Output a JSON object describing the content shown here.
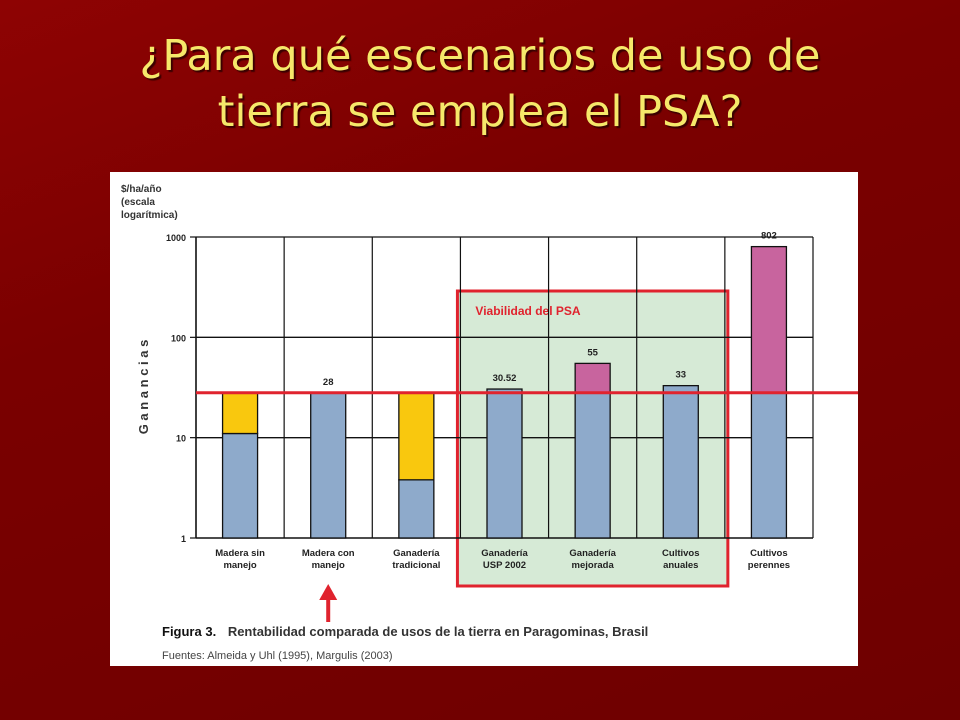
{
  "slide": {
    "title_line1": "¿Para qué escenarios de uso de",
    "title_line2": "tierra se emplea el PSA?"
  },
  "figure": {
    "number": "Figura 3.",
    "caption": "Rentabilidad comparada de usos de la tierra en Paragominas, Brasil",
    "sources": "Fuentes: Almeida y Uhl (1995), Margulis (2003)"
  },
  "colors": {
    "slide_background": "#7a0000",
    "title_text": "#f6e86a",
    "bar_base": "#8eaacb",
    "bar_yellow": "#f9c80e",
    "bar_pink": "#c8649e",
    "highlight_fill": "#d6ead6",
    "threshold_line": "#e0232e",
    "arrow": "#e0232e"
  },
  "chart_data": {
    "type": "bar",
    "stacked": true,
    "ylabel": [
      "$/ha/año",
      "(escala",
      "logarítmica)"
    ],
    "ylabel_side": "Ganancias",
    "y_scale": "log",
    "ylim": [
      1,
      1000
    ],
    "yticks": [
      "1",
      "10",
      "100",
      "1000"
    ],
    "threshold": 28,
    "highlight_box": {
      "label": "Viabilidad del PSA",
      "categories": [
        "Ganadería USP 2002",
        "Ganadería mejorada",
        "Cultivos anuales"
      ]
    },
    "arrow_under": "Madera con manejo",
    "categories": [
      {
        "label": [
          "Madera sin",
          "manejo"
        ],
        "segments": [
          {
            "from": 1,
            "to": 11,
            "color": "base"
          },
          {
            "from": 11,
            "to": 28,
            "color": "yellow"
          }
        ],
        "data_label": ""
      },
      {
        "label": [
          "Madera con",
          "manejo"
        ],
        "segments": [
          {
            "from": 1,
            "to": 28,
            "color": "base"
          }
        ],
        "data_label": "28"
      },
      {
        "label": [
          "Ganadería",
          "tradicional"
        ],
        "segments": [
          {
            "from": 1,
            "to": 3.8,
            "color": "base"
          },
          {
            "from": 3.8,
            "to": 28,
            "color": "yellow"
          }
        ],
        "data_label": ""
      },
      {
        "label": [
          "Ganadería",
          "USP 2002"
        ],
        "segments": [
          {
            "from": 1,
            "to": 28,
            "color": "base"
          },
          {
            "from": 28,
            "to": 30.52,
            "color": "base"
          }
        ],
        "data_label": "30.52"
      },
      {
        "label": [
          "Ganadería",
          "mejorada"
        ],
        "segments": [
          {
            "from": 1,
            "to": 28,
            "color": "base"
          },
          {
            "from": 28,
            "to": 55,
            "color": "pink"
          }
        ],
        "data_label": "55"
      },
      {
        "label": [
          "Cultivos",
          "anuales"
        ],
        "segments": [
          {
            "from": 1,
            "to": 28,
            "color": "base"
          },
          {
            "from": 28,
            "to": 33,
            "color": "base"
          }
        ],
        "data_label": "33"
      },
      {
        "label": [
          "Cultivos",
          "perennes"
        ],
        "segments": [
          {
            "from": 1,
            "to": 28,
            "color": "base"
          },
          {
            "from": 28,
            "to": 802,
            "color": "pink"
          }
        ],
        "data_label": "802"
      }
    ]
  }
}
